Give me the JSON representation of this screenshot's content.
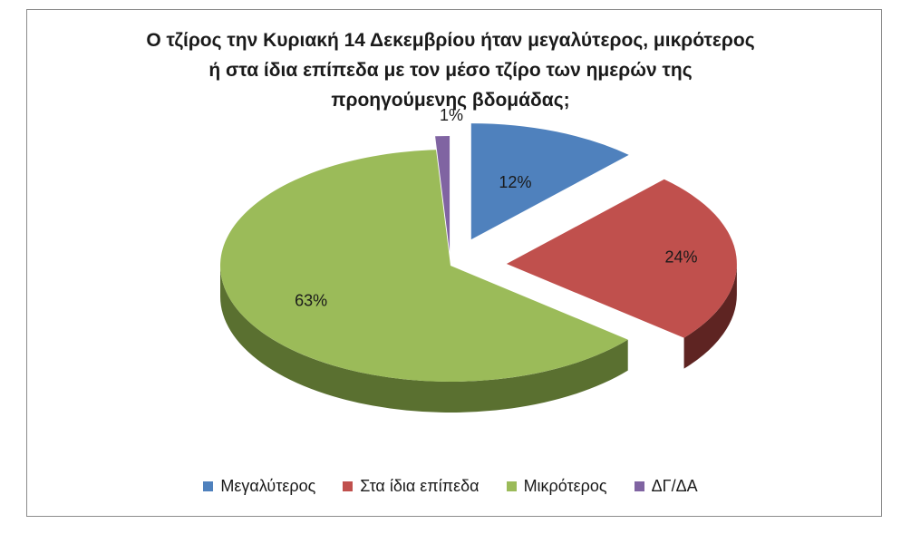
{
  "chart_data": {
    "type": "pie",
    "title_lines": [
      "Ο τζίρος την Κυριακή 14 Δεκεμβρίου ήταν μεγαλύτερος, μικρότερος",
      "ή στα ίδια επίπεδα με τον μέσο τζίρο των ημερών της",
      "προηγούμενης βδομάδας;"
    ],
    "slices": [
      {
        "label": "Μεγαλύτερος",
        "value": 12,
        "display": "12%",
        "color": "#4f81bd",
        "side": "#2c4d75"
      },
      {
        "label": "Στα ίδια επίπεδα",
        "value": 24,
        "display": "24%",
        "color": "#c0504d",
        "side": "#5e2422"
      },
      {
        "label": "Μικρότερος",
        "value": 63,
        "display": "63%",
        "color": "#9bbb59",
        "side": "#5a7030"
      },
      {
        "label": "ΔΓ/ΔΑ",
        "value": 1,
        "display": "1%",
        "color": "#8064a2",
        "side": "#4b3a60"
      }
    ],
    "legend_position": "bottom"
  }
}
